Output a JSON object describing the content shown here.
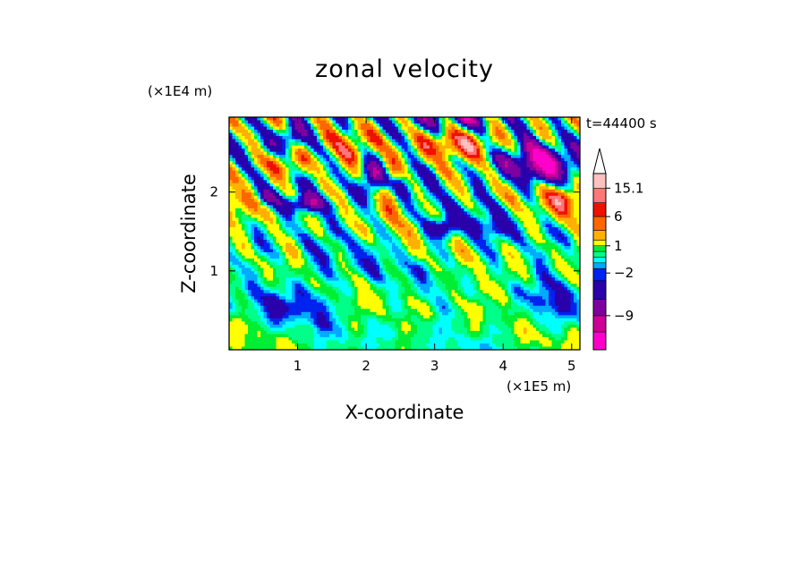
{
  "chart_data": {
    "type": "heatmap",
    "title": "zonal velocity",
    "xlabel": "X-coordinate",
    "ylabel": "Z-coordinate",
    "x_unit": "(×1E5 m)",
    "y_unit": "(×1E4 m)",
    "time_label": "t=44400 s",
    "xlim": [
      0,
      5.12
    ],
    "ylim": [
      0,
      2.95
    ],
    "x_ticks": [
      1,
      2,
      3,
      4,
      5
    ],
    "y_ticks": [
      1,
      2
    ],
    "colorbar": {
      "labels": [
        "15.1",
        "6",
        "1",
        "−2",
        "−9"
      ],
      "levels": [
        -15,
        -12,
        -9,
        -6,
        -3,
        -2,
        -1,
        0,
        1,
        2,
        4,
        6,
        8,
        10,
        12,
        15.1
      ],
      "colors": [
        "#ff00cc",
        "#cc0099",
        "#7f00a0",
        "#2a00aa",
        "#0022ee",
        "#00aaff",
        "#00ffff",
        "#00ff88",
        "#00ee33",
        "#ffff00",
        "#ffb000",
        "#ff6600",
        "#ee1100",
        "#ff7777",
        "#ffc0c0"
      ],
      "extend": "max"
    },
    "grid": false
  }
}
